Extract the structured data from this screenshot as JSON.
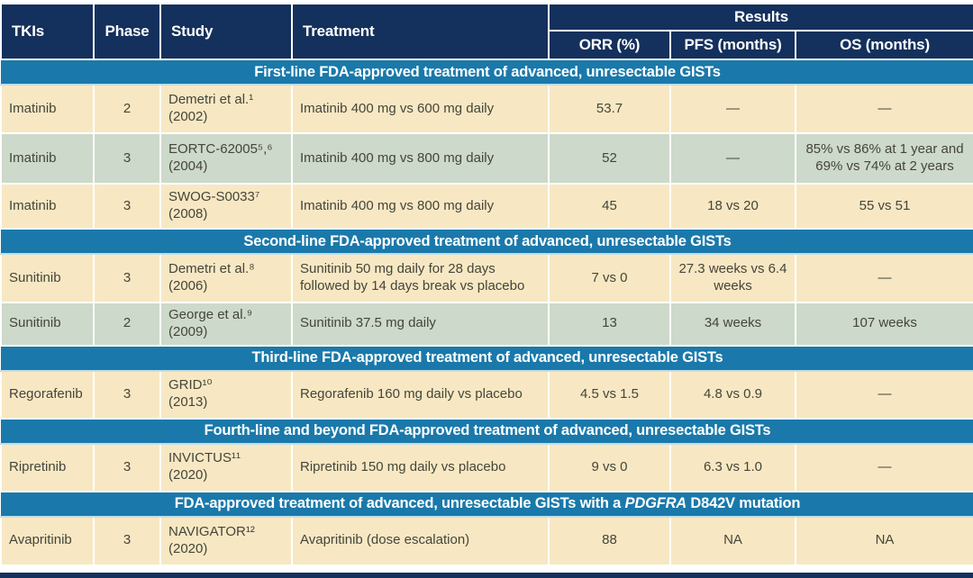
{
  "colors": {
    "header_navy": "#14305c",
    "banner_blue": "#1a79aa",
    "row_cream": "#f7e8c3",
    "row_sage": "#cdd9ca",
    "body_text": "#45453b",
    "header_text": "#ffffff"
  },
  "table": {
    "results_group_label": "Results",
    "columns": [
      {
        "label": "TKIs"
      },
      {
        "label": "Phase"
      },
      {
        "label": "Study"
      },
      {
        "label": "Treatment"
      },
      {
        "label": "ORR (%)"
      },
      {
        "label": "PFS (months)"
      },
      {
        "label": "OS (months)"
      }
    ],
    "sections": [
      {
        "title_parts": [
          {
            "text": "First-line FDA-approved treatment of advanced, unresectable GISTs"
          }
        ],
        "rows": [
          {
            "tki": "Imatinib",
            "phase": "2",
            "study": "Demetri et al.¹",
            "study_year": "(2002)",
            "treatment": "Imatinib 400 mg vs 600 mg daily",
            "orr": "53.7",
            "pfs": "—",
            "os": "—"
          },
          {
            "tki": "Imatinib",
            "phase": "3",
            "study": "EORTC-62005⁵,⁶",
            "study_year": "(2004)",
            "treatment": "Imatinib 400 mg vs 800 mg daily",
            "orr": "52",
            "pfs": "—",
            "os": "85% vs 86% at 1 year and 69% vs 74% at 2 years"
          },
          {
            "tki": "Imatinib",
            "phase": "3",
            "study": "SWOG-S0033⁷",
            "study_year": "(2008)",
            "treatment": "Imatinib 400 mg vs 800 mg daily",
            "orr": "45",
            "pfs": "18 vs 20",
            "os": "55 vs 51"
          }
        ]
      },
      {
        "title_parts": [
          {
            "text": "Second-line FDA-approved treatment of advanced, unresectable GISTs"
          }
        ],
        "rows": [
          {
            "tki": "Sunitinib",
            "phase": "3",
            "study": "Demetri et al.⁸",
            "study_year": "(2006)",
            "treatment": "Sunitinib 50 mg daily for 28 days followed by 14 days break vs placebo",
            "orr": "7 vs 0",
            "pfs": "27.3 weeks vs 6.4 weeks",
            "os": "—"
          },
          {
            "tki": "Sunitinib",
            "phase": "2",
            "study": "George et al.⁹",
            "study_year": "(2009)",
            "treatment": "Sunitinib 37.5 mg daily",
            "orr": "13",
            "pfs": "34 weeks",
            "os": "107 weeks"
          }
        ]
      },
      {
        "title_parts": [
          {
            "text": "Third-line FDA-approved treatment of advanced, unresectable GISTs"
          }
        ],
        "rows": [
          {
            "tki": "Regorafenib",
            "phase": "3",
            "study": "GRID¹⁰",
            "study_year": "(2013)",
            "treatment": "Regorafenib 160 mg daily vs placebo",
            "orr": "4.5 vs 1.5",
            "pfs": "4.8 vs 0.9",
            "os": "—"
          }
        ]
      },
      {
        "title_parts": [
          {
            "text": "Fourth-line and beyond FDA-approved treatment of advanced, unresectable GISTs"
          }
        ],
        "rows": [
          {
            "tki": "Ripretinib",
            "phase": "3",
            "study": "INVICTUS¹¹",
            "study_year": "(2020)",
            "treatment": "Ripretinib 150 mg daily vs placebo",
            "orr": "9 vs 0",
            "pfs": "6.3 vs 1.0",
            "os": "—"
          }
        ]
      },
      {
        "title_parts": [
          {
            "text": "FDA-approved treatment of advanced, unresectable GISTs with a "
          },
          {
            "text": "PDGFRA",
            "italic": true
          },
          {
            "text": " D842V mutation"
          }
        ],
        "rows": [
          {
            "tki": "Avapritinib",
            "phase": "3",
            "study": "NAVIGATOR¹²",
            "study_year": "(2020)",
            "treatment": "Avapritinib (dose escalation)",
            "orr": "88",
            "pfs": "NA",
            "os": "NA"
          }
        ]
      }
    ]
  }
}
